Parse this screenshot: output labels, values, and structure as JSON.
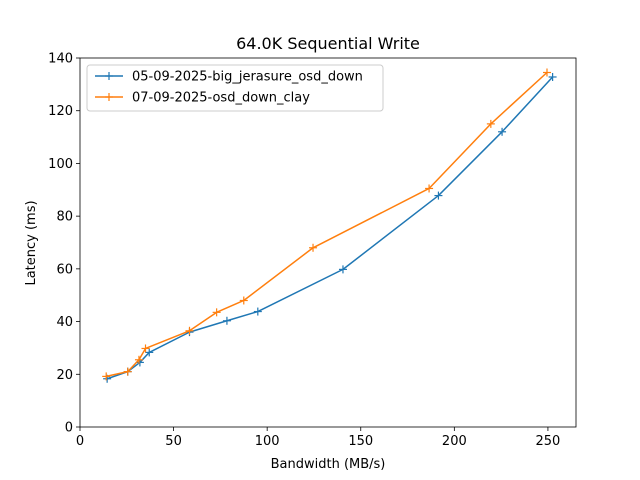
{
  "chart_data": {
    "type": "line",
    "title": "64.0K  Sequential Write",
    "xlabel": "Bandwidth (MB/s)",
    "ylabel": "Latency (ms)",
    "xlim": [
      0,
      265
    ],
    "ylim": [
      0,
      140
    ],
    "x_ticks": [
      0,
      50,
      100,
      150,
      200,
      250
    ],
    "y_ticks": [
      0,
      20,
      40,
      60,
      80,
      100,
      120,
      140
    ],
    "grid": false,
    "legend_position": "upper-left",
    "series": [
      {
        "name": "05-09-2025-big_jerasure_osd_down",
        "color": "#1f77b4",
        "marker": "plus",
        "points": [
          {
            "x": 14.5,
            "y": 18.3
          },
          {
            "x": 25.5,
            "y": 21.0
          },
          {
            "x": 32,
            "y": 24.5
          },
          {
            "x": 37,
            "y": 28.3
          },
          {
            "x": 58.5,
            "y": 36.0
          },
          {
            "x": 78.5,
            "y": 40.3
          },
          {
            "x": 95,
            "y": 43.8
          },
          {
            "x": 140.5,
            "y": 59.8
          },
          {
            "x": 191.5,
            "y": 87.8
          },
          {
            "x": 225.5,
            "y": 112.0
          },
          {
            "x": 252.5,
            "y": 132.8
          }
        ]
      },
      {
        "name": "07-09-2025-osd_down_clay",
        "color": "#ff7f0e",
        "marker": "plus",
        "points": [
          {
            "x": 14,
            "y": 19.2
          },
          {
            "x": 25.5,
            "y": 21.0
          },
          {
            "x": 31.5,
            "y": 25.5
          },
          {
            "x": 35,
            "y": 29.8
          },
          {
            "x": 58.5,
            "y": 36.5
          },
          {
            "x": 73,
            "y": 43.5
          },
          {
            "x": 87.5,
            "y": 48.0
          },
          {
            "x": 124.5,
            "y": 68.0
          },
          {
            "x": 186.5,
            "y": 90.5
          },
          {
            "x": 219.5,
            "y": 115.0
          },
          {
            "x": 249.5,
            "y": 134.5
          }
        ]
      }
    ]
  }
}
